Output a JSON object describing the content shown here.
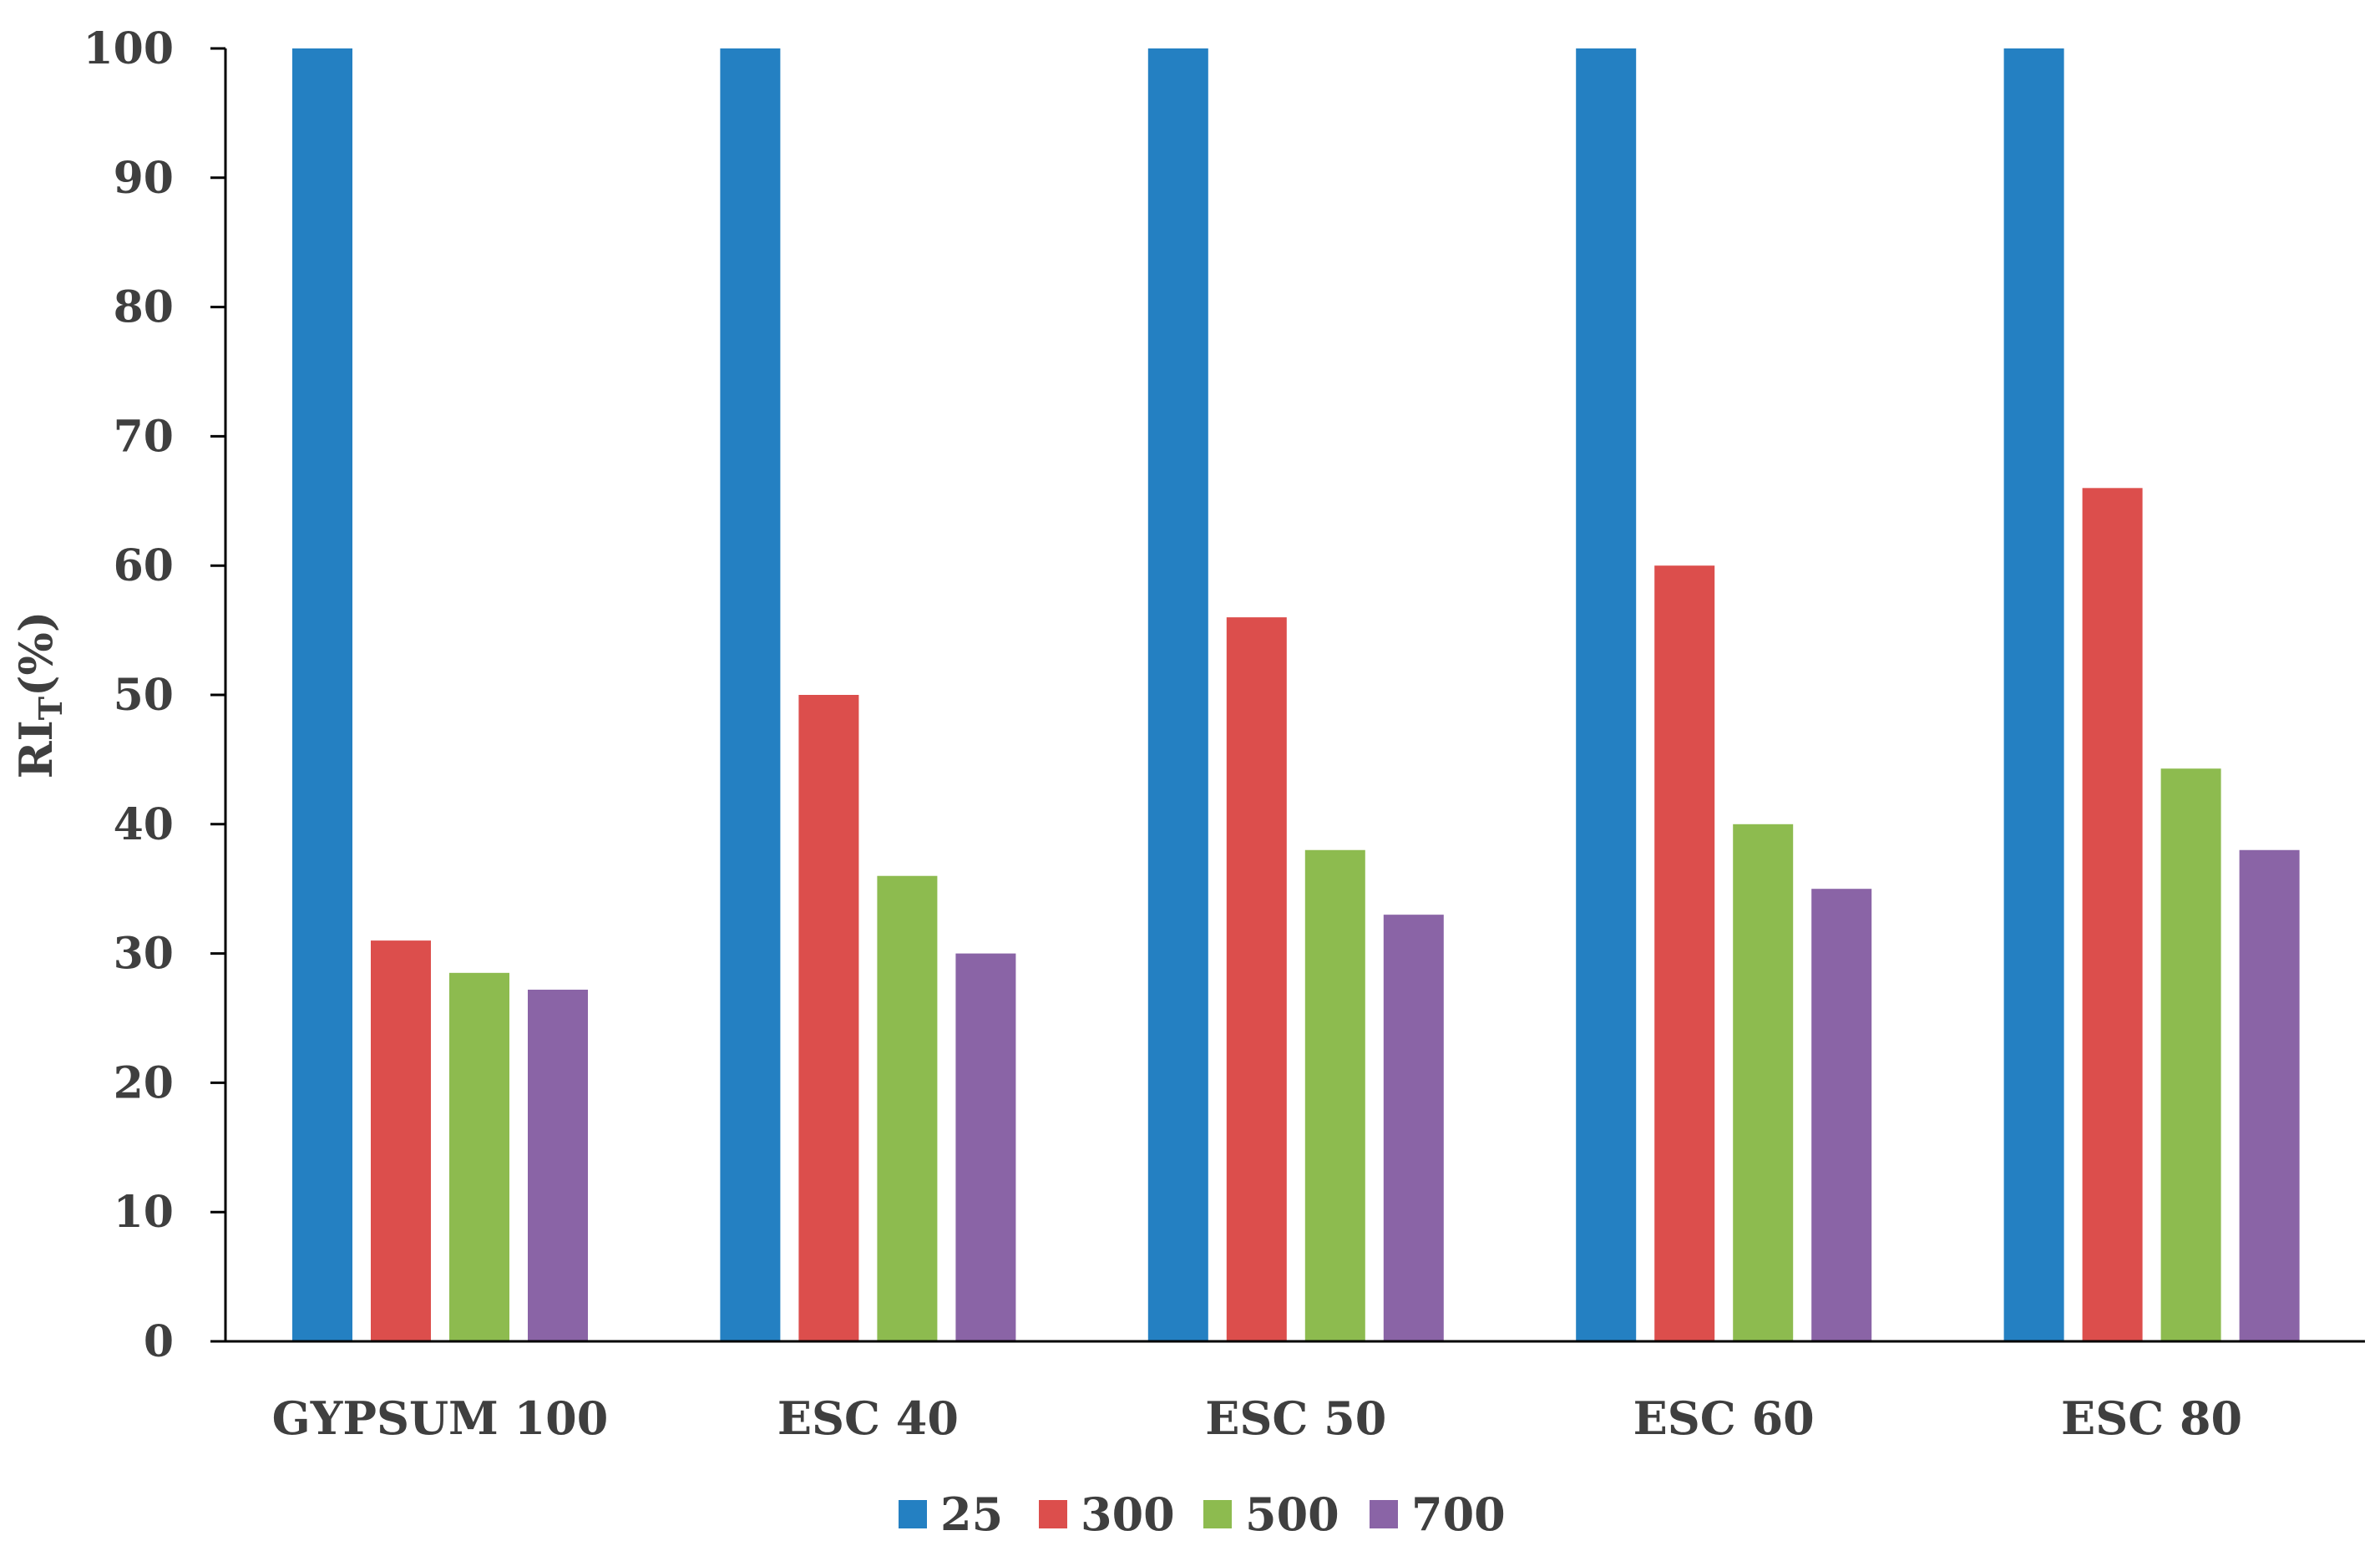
{
  "chart_data": {
    "type": "bar",
    "title": "",
    "xlabel": "",
    "ylabel": "RI",
    "ylabel_subscript": "T",
    "ylabel_suffix": "(%)",
    "ylim": [
      0,
      100
    ],
    "yticks": [
      "0",
      "10",
      "20",
      "30",
      "40",
      "50",
      "60",
      "70",
      "80",
      "90",
      "100"
    ],
    "grid": false,
    "legend_position": "bottom",
    "categories": [
      "GYPSUM 100",
      "ESC 40",
      "ESC 50",
      "ESC 60",
      "ESC 80"
    ],
    "series": [
      {
        "name": "25",
        "color": "#2480C2",
        "values": [
          100,
          100,
          100,
          100,
          100
        ]
      },
      {
        "name": "300",
        "color": "#DC4E4C",
        "values": [
          31,
          50,
          56,
          60,
          66
        ]
      },
      {
        "name": "500",
        "color": "#8DBB4F",
        "values": [
          28.5,
          36,
          38,
          40,
          44.3
        ]
      },
      {
        "name": "700",
        "color": "#8A64A6",
        "values": [
          27.2,
          30,
          33,
          35,
          38
        ]
      }
    ]
  }
}
